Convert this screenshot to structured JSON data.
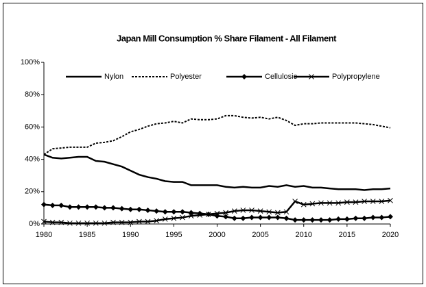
{
  "chart_data": {
    "type": "line",
    "title": "Japan Mill Consumption % Share Filament - All Filament",
    "x": [
      1980,
      1981,
      1982,
      1983,
      1984,
      1985,
      1986,
      1987,
      1988,
      1989,
      1990,
      1991,
      1992,
      1993,
      1994,
      1995,
      1996,
      1997,
      1998,
      1999,
      2000,
      2001,
      2002,
      2003,
      2004,
      2005,
      2006,
      2007,
      2008,
      2009,
      2010,
      2011,
      2012,
      2013,
      2014,
      2015,
      2016,
      2017,
      2018,
      2019,
      2020
    ],
    "series": [
      {
        "name": "Nylon",
        "color": "#000000",
        "dash": false,
        "marker": "none",
        "values": [
          43,
          41,
          40.5,
          41,
          41.5,
          41.5,
          39,
          38.5,
          37,
          35.5,
          33,
          30.5,
          29,
          28,
          26.5,
          26,
          26,
          24,
          24,
          24,
          24,
          23,
          22.5,
          23,
          22.5,
          22.5,
          23.5,
          23,
          24,
          23,
          23.5,
          22.5,
          22.5,
          22,
          21.5,
          21.5,
          21.5,
          21,
          21.5,
          21.5,
          22
        ]
      },
      {
        "name": "Polyester",
        "color": "#000000",
        "dash": true,
        "marker": "none",
        "values": [
          43,
          46.5,
          47,
          47.5,
          47.5,
          47.5,
          50,
          50.5,
          51.5,
          54,
          57,
          58.5,
          60.5,
          62,
          62.5,
          63.5,
          62.5,
          65,
          64.5,
          64.5,
          65,
          67,
          67,
          66,
          65.5,
          66,
          65,
          66,
          64,
          61,
          62,
          62,
          62.5,
          62.5,
          62.5,
          62.5,
          62.5,
          62,
          61.5,
          60.5,
          59.5
        ]
      },
      {
        "name": "Cellulosic",
        "color": "#000000",
        "dash": false,
        "marker": "diamond",
        "values": [
          12,
          11.5,
          11.5,
          10.5,
          10.5,
          10.5,
          10.5,
          10,
          10,
          9.5,
          9,
          9,
          8.5,
          8,
          7.5,
          7.5,
          7.5,
          7,
          6.5,
          6,
          5,
          4.5,
          3.5,
          3.5,
          4,
          4,
          4,
          4,
          3.5,
          2.5,
          2.5,
          2.5,
          2.5,
          2.5,
          3,
          3,
          3.5,
          3.5,
          4,
          4,
          4.5
        ]
      },
      {
        "name": "Polypropylene",
        "color": "#000000",
        "dash": false,
        "marker": "x",
        "values": [
          1.5,
          1,
          1,
          0.5,
          0.5,
          0.5,
          0.5,
          0.5,
          1,
          1,
          1,
          1.5,
          1.5,
          2,
          3,
          3.5,
          4,
          5,
          5.5,
          6,
          6.5,
          7,
          8,
          8.5,
          8.5,
          8,
          7.5,
          7,
          7.5,
          14,
          12,
          12.5,
          13,
          13,
          13,
          13.5,
          13.5,
          14,
          14,
          14,
          14.5
        ]
      }
    ],
    "xlim": [
      1980,
      2020
    ],
    "xticks": [
      1980,
      1985,
      1990,
      1995,
      2000,
      2005,
      2010,
      2015,
      2020
    ],
    "ylim": [
      0,
      100
    ],
    "yticks": [
      {
        "value": 0,
        "label": "0%"
      },
      {
        "value": 20,
        "label": "20%"
      },
      {
        "value": 40,
        "label": "40%"
      },
      {
        "value": 60,
        "label": "60%"
      },
      {
        "value": 80,
        "label": "80%"
      },
      {
        "value": 100,
        "label": "100%"
      }
    ],
    "grid": false,
    "legend": "top"
  }
}
